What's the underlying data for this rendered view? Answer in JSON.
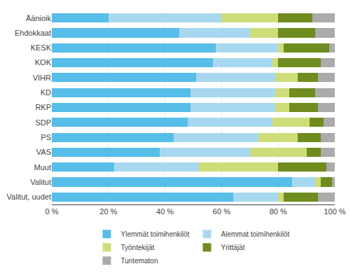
{
  "chart_data": {
    "type": "bar",
    "orientation": "horizontal",
    "stacked": true,
    "categories": [
      "Äänioik",
      "Ehdokkaat",
      "KESK",
      "KOK",
      "VIHR",
      "KD",
      "RKP",
      "SDP",
      "PS",
      "VAS",
      "Muut",
      "Valitut",
      "Valitut, uudet"
    ],
    "series": [
      {
        "name": "Ylemmät toimihenkilöt",
        "color": "#56BEE8",
        "values": [
          20,
          45,
          58,
          57,
          51,
          49,
          49,
          48,
          43,
          38,
          22,
          85,
          64
        ]
      },
      {
        "name": "Alemmat toimihenkilöt",
        "color": "#A8D8F0",
        "values": [
          40,
          25,
          22,
          21,
          28,
          30,
          30,
          30,
          30,
          32,
          30,
          8,
          16
        ]
      },
      {
        "name": "Työntekijät",
        "color": "#CEDD7A",
        "values": [
          20,
          10,
          2,
          2,
          8,
          5,
          5,
          13,
          14,
          20,
          28,
          2,
          2
        ]
      },
      {
        "name": "Yrittäjät",
        "color": "#6F8C1E",
        "values": [
          12,
          13,
          16,
          15,
          7,
          9,
          10,
          5,
          8,
          5,
          17,
          4,
          12
        ]
      },
      {
        "name": "Tuntematon",
        "color": "#ABABAB",
        "values": [
          8,
          7,
          2,
          5,
          6,
          7,
          6,
          4,
          5,
          5,
          3,
          1,
          6
        ]
      }
    ],
    "xlim": [
      0,
      100
    ],
    "xticks": [
      {
        "value": 0,
        "label": "0 %"
      },
      {
        "value": 20,
        "label": "20 %"
      },
      {
        "value": 40,
        "label": "40 %"
      },
      {
        "value": 60,
        "label": "60 %"
      },
      {
        "value": 80,
        "label": "80 %"
      },
      {
        "value": 100,
        "label": "100 %"
      }
    ],
    "grid": true,
    "legend": "bottom"
  }
}
